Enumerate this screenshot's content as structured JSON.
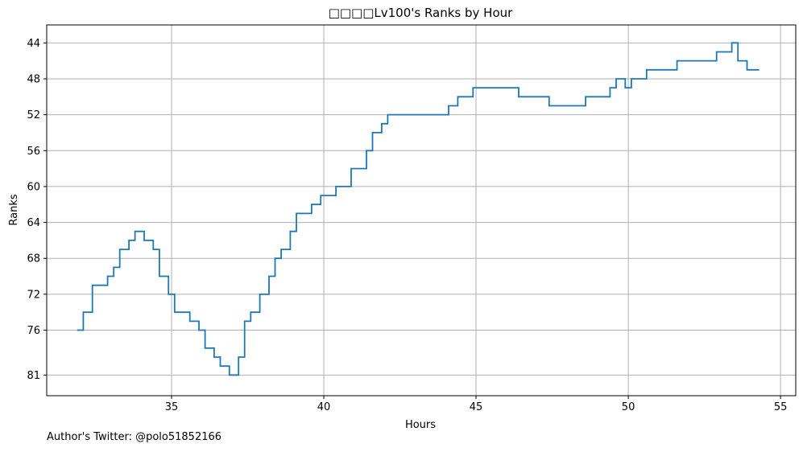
{
  "chart_data": {
    "type": "line",
    "step": true,
    "title": "□□□□Lv100's Ranks by Hour",
    "xlabel": "Hours",
    "ylabel": "Ranks",
    "xlim": [
      30.9,
      55.5
    ],
    "ylim": [
      83.3,
      42.0
    ],
    "y_inverted": true,
    "grid": true,
    "xticks": [
      35,
      40,
      45,
      50,
      55
    ],
    "yticks": [
      44,
      48,
      52,
      56,
      60,
      64,
      68,
      72,
      76,
      81
    ],
    "series": [
      {
        "color": "#1f77b4",
        "points": [
          [
            31.9,
            76
          ],
          [
            32.1,
            74
          ],
          [
            32.4,
            71
          ],
          [
            32.9,
            70
          ],
          [
            33.1,
            69
          ],
          [
            33.3,
            67
          ],
          [
            33.6,
            66
          ],
          [
            33.8,
            65
          ],
          [
            34.1,
            66
          ],
          [
            34.4,
            67
          ],
          [
            34.6,
            70
          ],
          [
            34.9,
            72
          ],
          [
            35.1,
            74
          ],
          [
            35.6,
            75
          ],
          [
            35.9,
            76
          ],
          [
            36.1,
            78
          ],
          [
            36.4,
            79
          ],
          [
            36.6,
            80
          ],
          [
            36.9,
            81
          ],
          [
            37.2,
            79
          ],
          [
            37.4,
            75
          ],
          [
            37.6,
            74
          ],
          [
            37.9,
            72
          ],
          [
            38.2,
            70
          ],
          [
            38.4,
            68
          ],
          [
            38.6,
            67
          ],
          [
            38.9,
            65
          ],
          [
            39.1,
            63
          ],
          [
            39.6,
            62
          ],
          [
            39.9,
            61
          ],
          [
            40.4,
            60
          ],
          [
            40.9,
            58
          ],
          [
            41.4,
            56
          ],
          [
            41.6,
            54
          ],
          [
            41.9,
            53
          ],
          [
            42.1,
            52
          ],
          [
            44.1,
            51
          ],
          [
            44.4,
            50
          ],
          [
            44.9,
            49
          ],
          [
            46.4,
            50
          ],
          [
            47.4,
            51
          ],
          [
            48.6,
            50
          ],
          [
            49.4,
            49
          ],
          [
            49.6,
            48
          ],
          [
            49.9,
            49
          ],
          [
            50.1,
            48
          ],
          [
            50.6,
            47
          ],
          [
            51.6,
            46
          ],
          [
            52.9,
            45
          ],
          [
            53.4,
            44
          ],
          [
            53.6,
            46
          ],
          [
            53.9,
            47
          ],
          [
            54.3,
            47
          ]
        ]
      }
    ]
  },
  "footer": {
    "credit": "Author's Twitter: @polo51852166"
  }
}
